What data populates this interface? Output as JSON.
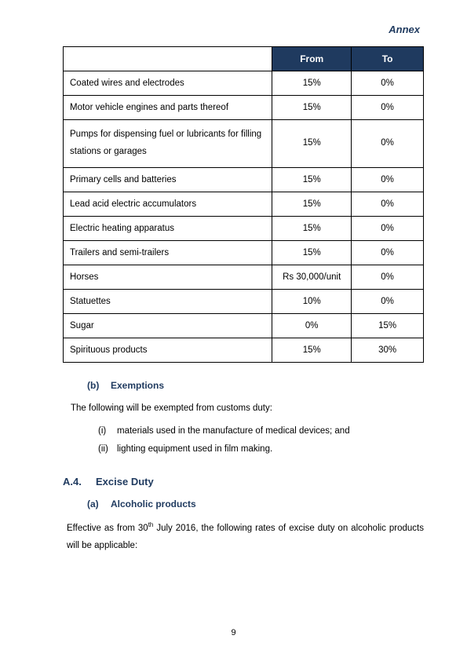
{
  "header": {
    "annex": "Annex"
  },
  "table": {
    "header_bg": "#1f3a5f",
    "columns": {
      "from": "From",
      "to": "To"
    },
    "rows": [
      {
        "item": "Coated wires and electrodes",
        "from": "15%",
        "to": "0%"
      },
      {
        "item": "Motor vehicle engines and parts thereof",
        "from": "15%",
        "to": "0%"
      },
      {
        "item": "Pumps for dispensing fuel or lubricants for filling stations or garages",
        "from": "15%",
        "to": "0%",
        "tall": true
      },
      {
        "item": "Primary cells and batteries",
        "from": "15%",
        "to": "0%"
      },
      {
        "item": "Lead acid electric accumulators",
        "from": "15%",
        "to": "0%"
      },
      {
        "item": "Electric heating apparatus",
        "from": "15%",
        "to": "0%"
      },
      {
        "item": "Trailers and semi-trailers",
        "from": "15%",
        "to": "0%"
      },
      {
        "item": "Horses",
        "from": "Rs 30,000/unit",
        "to": "0%"
      },
      {
        "item": "Statuettes",
        "from": "10%",
        "to": "0%"
      },
      {
        "item": "Sugar",
        "from": "0%",
        "to": "15%"
      },
      {
        "item": "Spirituous products",
        "from": "15%",
        "to": "30%"
      }
    ]
  },
  "exemptions": {
    "marker": "(b)",
    "title": "Exemptions",
    "intro": "The following will be exempted from customs duty:",
    "items": [
      {
        "m": "(i)",
        "t": "materials used in the manufacture of medical devices; and"
      },
      {
        "m": "(ii)",
        "t": "lighting equipment used in film making."
      }
    ]
  },
  "a4": {
    "num": "A.4.",
    "title": "Excise Duty",
    "sub": {
      "marker": "(a)",
      "title": "Alcoholic products"
    },
    "para_pre": "Effective as from 30",
    "para_sup": "th",
    "para_post": " July 2016, the following rates of excise duty on alcoholic products will be applicable:"
  },
  "page": "9"
}
